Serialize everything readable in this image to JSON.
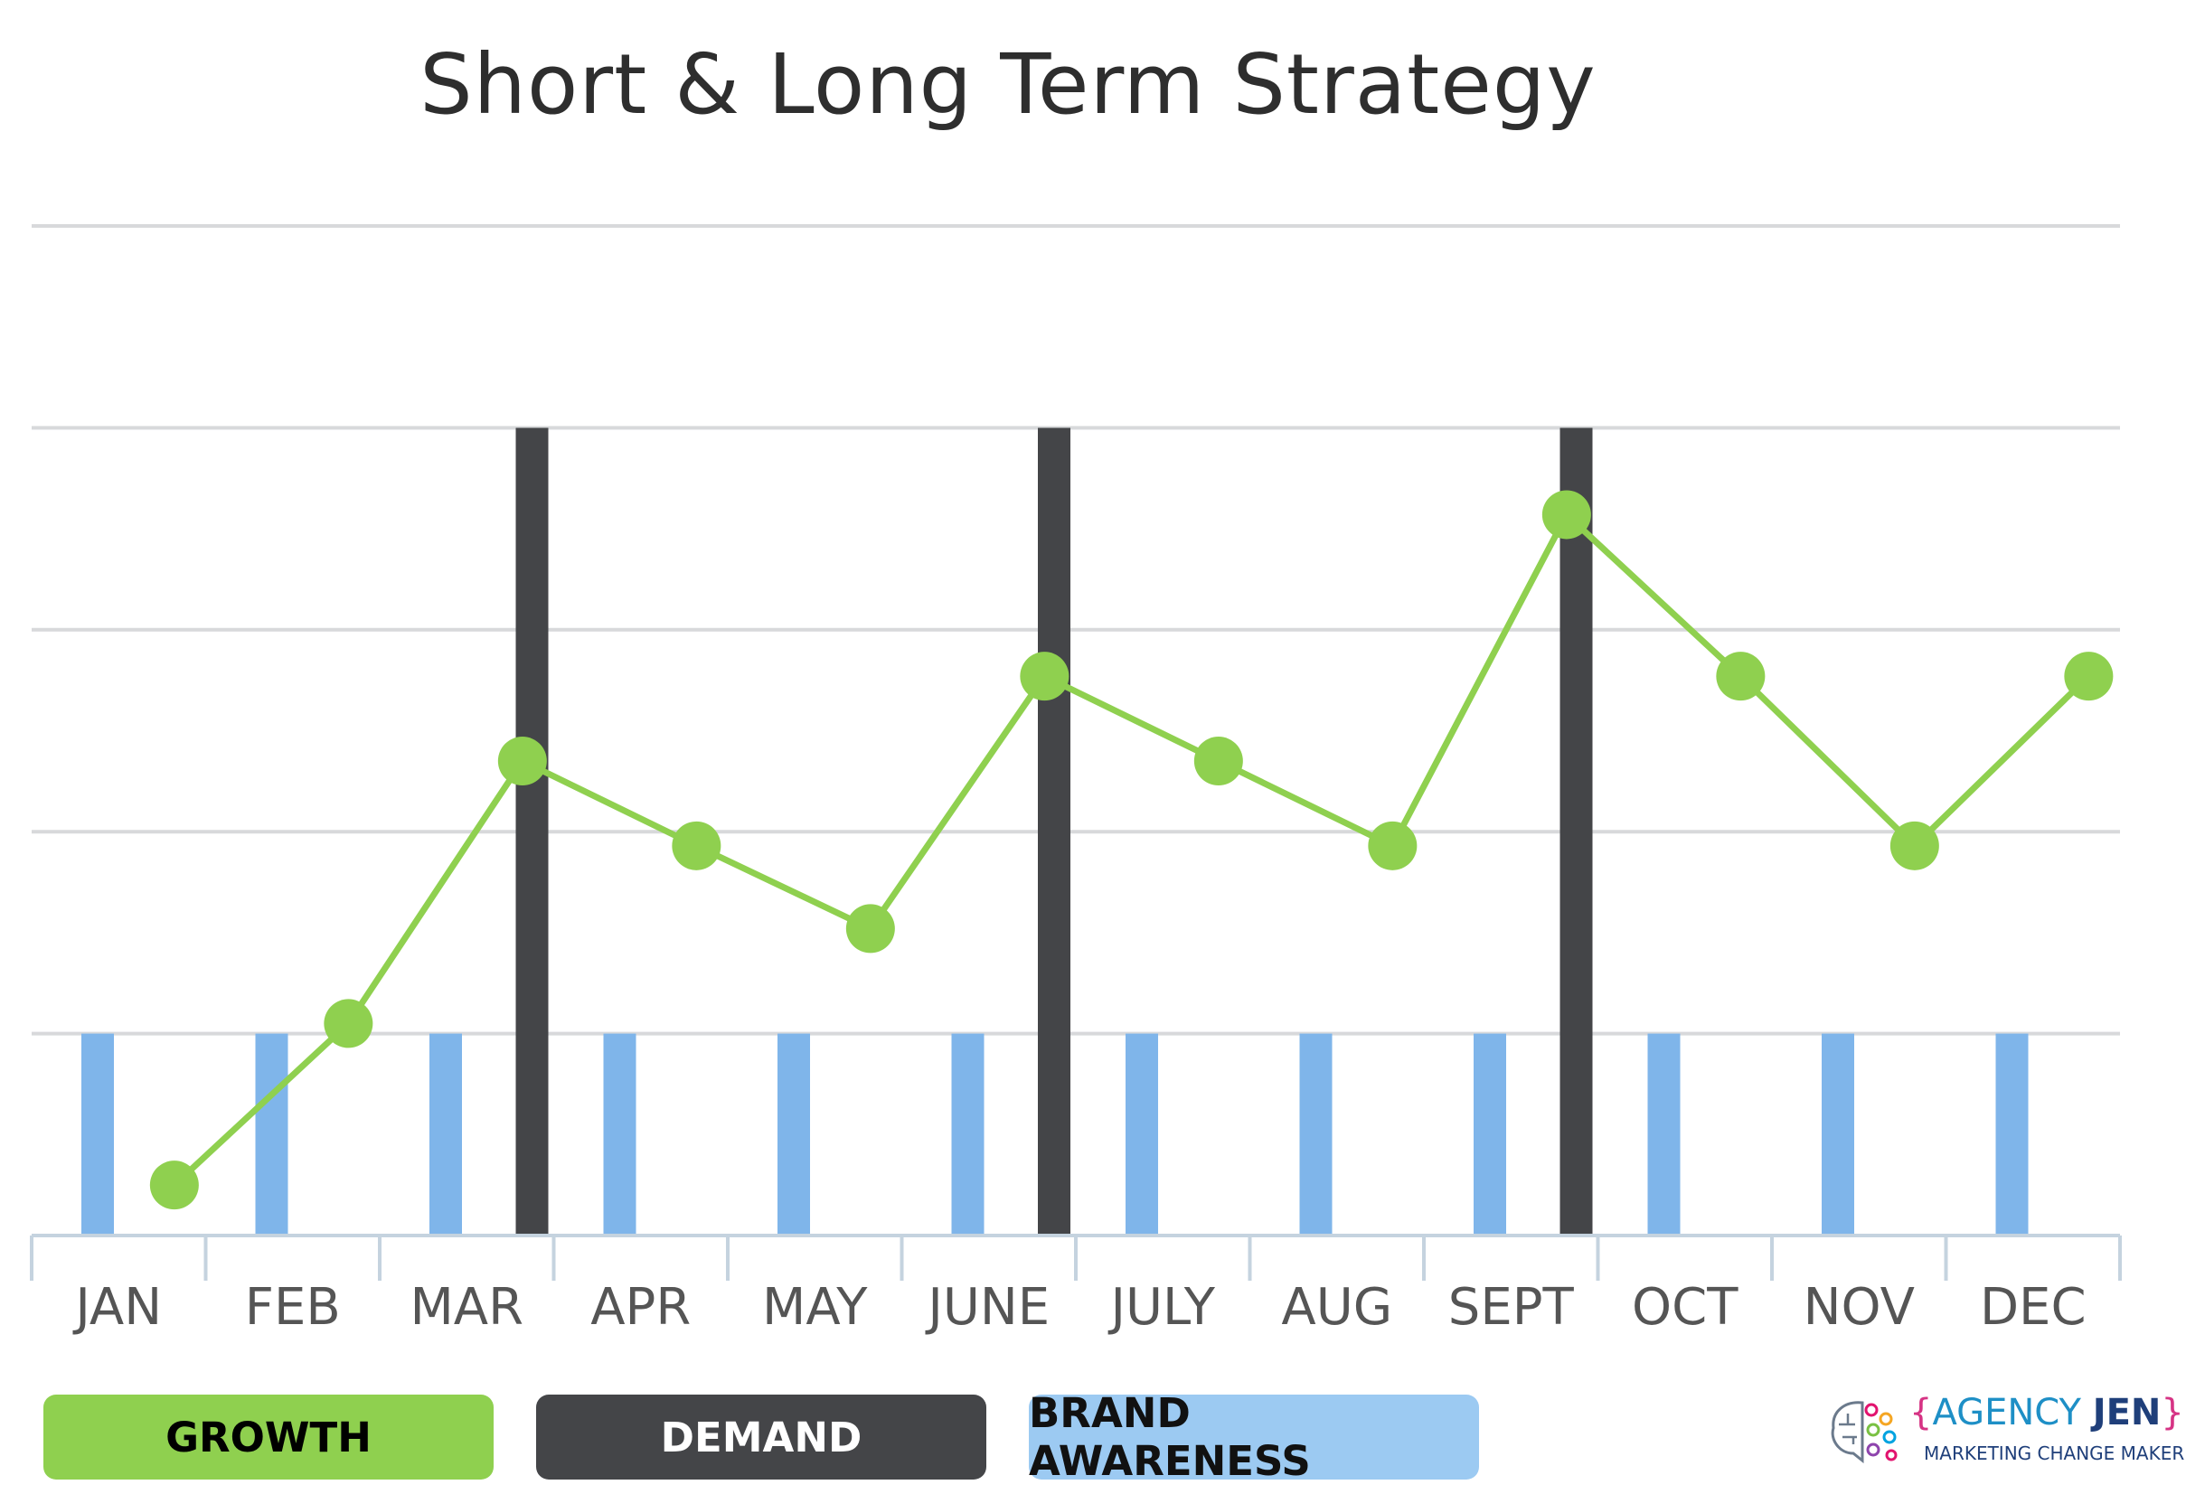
{
  "chart_data": {
    "type": "bar+line",
    "title": "Short & Long Term Strategy",
    "categories": [
      "JAN",
      "FEB",
      "MAR",
      "APR",
      "MAY",
      "JUNE",
      "JULY",
      "AUG",
      "SEPT",
      "OCT",
      "NOV",
      "DEC"
    ],
    "series": [
      {
        "name": "GROWTH",
        "type": "line",
        "color": "#8fd04f",
        "values": [
          0.25,
          1.05,
          2.35,
          1.93,
          1.52,
          2.77,
          2.35,
          1.93,
          3.57,
          2.77,
          1.93,
          2.77
        ]
      },
      {
        "name": "DEMAND",
        "type": "bar",
        "color": "#444548",
        "values": [
          null,
          null,
          4,
          null,
          null,
          4,
          null,
          null,
          4,
          null,
          null,
          null
        ]
      },
      {
        "name": "BRAND AWARENESS",
        "type": "bar",
        "color": "#7fb5ea",
        "values": [
          1,
          1,
          1,
          1,
          1,
          1,
          1,
          1,
          1,
          1,
          1,
          1
        ]
      }
    ],
    "ylim": [
      0,
      5
    ],
    "grid": true,
    "xlabel": "",
    "ylabel": "",
    "legend_position": "bottom-left"
  },
  "legend": {
    "items": [
      {
        "label": "GROWTH",
        "color": "#8fd04f"
      },
      {
        "label": "DEMAND",
        "color": "#444548"
      },
      {
        "label": "BRAND AWARENESS",
        "color": "#9ccaf2"
      }
    ]
  },
  "logo": {
    "open_brace": "{",
    "name_part1": "AGENCY ",
    "name_part2": "JEN",
    "close_brace": "}",
    "tagline": "MARKETING CHANGE MAKER"
  }
}
